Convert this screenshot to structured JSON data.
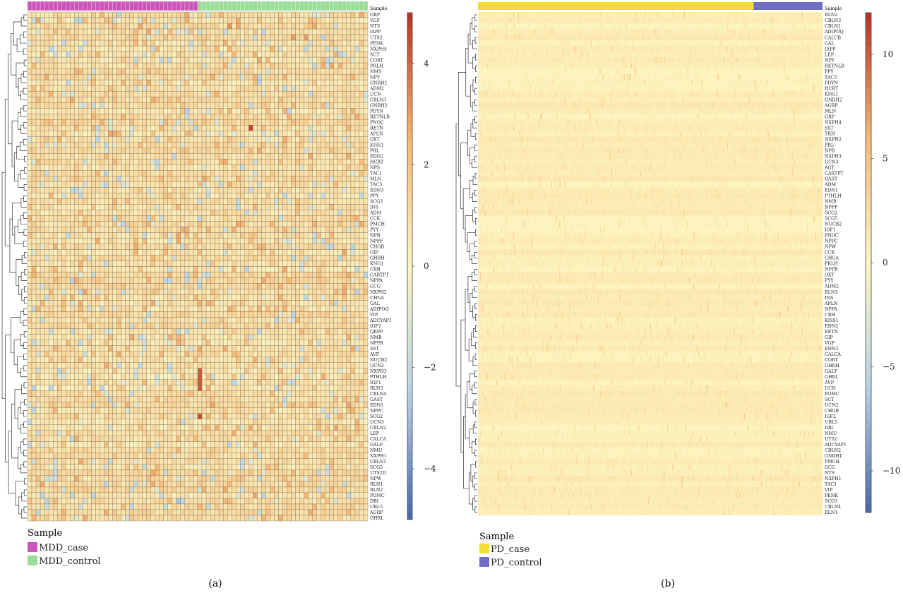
{
  "chart_data": [
    {
      "type": "heatmap",
      "panel_label": "(a)",
      "annotation_title": "Sample",
      "legend_title": "Sample",
      "groups": [
        {
          "name": "MDD_case",
          "color": "#cc55bb",
          "n_columns": 40
        },
        {
          "name": "MDD_control",
          "color": "#99dd99",
          "n_columns": 40
        }
      ],
      "n_columns": 80,
      "rows": [
        "GRP",
        "VGF",
        "NTS",
        "IAPP",
        "UTS2",
        "PENK",
        "NXPH4",
        "SCT",
        "CORT",
        "PRLH",
        "NMS",
        "NPY",
        "GNRH1",
        "ADM2",
        "UCN",
        "CBLN3",
        "GNRH2",
        "PDYN",
        "RETNLB",
        "PNOC",
        "RETN",
        "APLN",
        "OXT",
        "KISS1",
        "PRL",
        "EDN2",
        "HCRT",
        "NPS",
        "TAC1",
        "MLN",
        "TAC3",
        "EDN3",
        "PPY",
        "SCG3",
        "INS",
        "ADM",
        "CCK",
        "PMCH",
        "PYY",
        "NPB",
        "NPFF",
        "CHGB",
        "GIP",
        "GHRH",
        "KNG1",
        "CRH",
        "CARTPT",
        "NPPA",
        "GCG",
        "NXPH2",
        "CHGA",
        "GAL",
        "ADIPOQ",
        "VIP",
        "ADCYAP1",
        "IGF2",
        "QRFP",
        "NMB",
        "NPPB",
        "SST",
        "AVP",
        "NUCB2",
        "UCN2",
        "NXPH3",
        "PTHLH",
        "IGF1",
        "RLN3",
        "CBLN4",
        "GAST",
        "EDN1",
        "NPPC",
        "SCG2",
        "UCN3",
        "CBLN2",
        "LEP",
        "CALCA",
        "GALP",
        "NMU",
        "NXPH1",
        "CBLN1",
        "SCG5",
        "UTS2D",
        "NPW",
        "RLN1",
        "RLN2",
        "POMC",
        "DBI",
        "UBL5",
        "AGRP",
        "GHRL"
      ],
      "colorbar": {
        "min": -5,
        "max": 5,
        "ticks": [
          -4,
          -2,
          0,
          2,
          4
        ],
        "tick_labels": [
          "−4",
          "−2",
          "0",
          "2",
          "4"
        ],
        "colors": [
          "#4a67a8",
          "#b7d3e6",
          "#fdf7c3",
          "#f7b874",
          "#b83120"
        ]
      },
      "highlights": [
        {
          "row": "NTS",
          "col": 47,
          "value": 3.2
        },
        {
          "row": "UTS2",
          "col": 62,
          "value": 3.0
        },
        {
          "row": "UTS2",
          "col": 65,
          "value": 3.0
        },
        {
          "row": "RETN",
          "col": 52,
          "value": 4.6
        },
        {
          "row": "NXPH2",
          "col": 13,
          "value": 2.9
        },
        {
          "row": "NXPH3",
          "col": 40,
          "value": 4.2
        },
        {
          "row": "PTHLH",
          "col": 40,
          "value": 4.2
        },
        {
          "row": "IGF1",
          "col": 40,
          "value": 4.2
        },
        {
          "row": "RLN3",
          "col": 40,
          "value": 4.2
        },
        {
          "row": "SCG2",
          "col": 40,
          "value": 4.4
        },
        {
          "row": "NPW",
          "col": 11,
          "value": 2.7
        },
        {
          "row": "SCG5",
          "col": 56,
          "value": 2.5
        },
        {
          "row": "DBI",
          "col": 35,
          "value": -2.8
        },
        {
          "row": "NXPH2",
          "col": 12,
          "value": -2.2
        }
      ]
    },
    {
      "type": "heatmap",
      "panel_label": "(b)",
      "annotation_title": "Sample",
      "legend_title": "Sample",
      "groups": [
        {
          "name": "PD_case",
          "color": "#f3dc35",
          "n_columns": 376
        },
        {
          "name": "PD_control",
          "color": "#6f6fc4",
          "n_columns": 94
        }
      ],
      "n_columns": 470,
      "rows": [
        "RLN2",
        "CBLN3",
        "CBLN1",
        "ADIPOQ",
        "CALCB",
        "GAL",
        "IAPP",
        "LEP",
        "NPY",
        "RETNLB",
        "PPY",
        "TAC3",
        "PDYN",
        "HCRT",
        "KNG1",
        "GNRH2",
        "AGRP",
        "MLN",
        "GRP",
        "NXPH4",
        "SST",
        "TRH",
        "NXPH2",
        "PRL",
        "NPB",
        "NXPH3",
        "UCN3",
        "AGT",
        "CARTPT",
        "GAST",
        "ADM",
        "EDN1",
        "PTHLH",
        "NMB",
        "NPFF",
        "SCG2",
        "SCG5",
        "NUCB2",
        "IGF1",
        "PNOC",
        "NPPC",
        "NPW",
        "CCK",
        "CHGA",
        "PRLH",
        "NPPB",
        "OXT",
        "PYY",
        "ADM2",
        "RLN3",
        "INS",
        "APLN",
        "NPPA",
        "CRH",
        "KISS1",
        "EDN2",
        "RETN",
        "GIP",
        "VGF",
        "EDN3",
        "CALCA",
        "CORT",
        "GHRH",
        "GALP",
        "GHRL",
        "AVP",
        "UCN",
        "POMC",
        "SCT",
        "UCN2",
        "CHGB",
        "IGF2",
        "UBL5",
        "DBI",
        "NMU",
        "UTS2",
        "ADCYAP1",
        "CBLN2",
        "GNRH1",
        "PMCH",
        "GCG",
        "NTS",
        "NXPH1",
        "TAC1",
        "VIP",
        "PENK",
        "SCG3",
        "CBLN4",
        "RLN1"
      ],
      "colorbar": {
        "min": -12,
        "max": 12,
        "ticks": [
          -10,
          -5,
          0,
          5,
          10
        ],
        "tick_labels": [
          "−10",
          "−5",
          "0",
          "5",
          "10"
        ],
        "colors": [
          "#4a67a8",
          "#b7d3e6",
          "#fdf7c3",
          "#f7b874",
          "#b83120"
        ]
      },
      "highlights": [
        {
          "row": "NXPH1",
          "col": 28,
          "value": 5.5
        },
        {
          "row": "NTS",
          "col": 28,
          "value": 5.0
        },
        {
          "row": "CBLN4",
          "col": 28,
          "value": 5.0
        },
        {
          "row": "NXPH1",
          "col": 70,
          "value": 5.0
        },
        {
          "row": "RLN1",
          "col": 70,
          "value": 5.0
        },
        {
          "row": "GCG",
          "col": 105,
          "value": 4.5
        },
        {
          "row": "NXPH1",
          "col": 278,
          "value": 5.5
        },
        {
          "row": "TAC1",
          "col": 278,
          "value": 5.0
        },
        {
          "row": "PENK",
          "col": 300,
          "value": 4.0
        },
        {
          "row": "PMCH",
          "col": 175,
          "value": 4.0
        }
      ]
    }
  ]
}
